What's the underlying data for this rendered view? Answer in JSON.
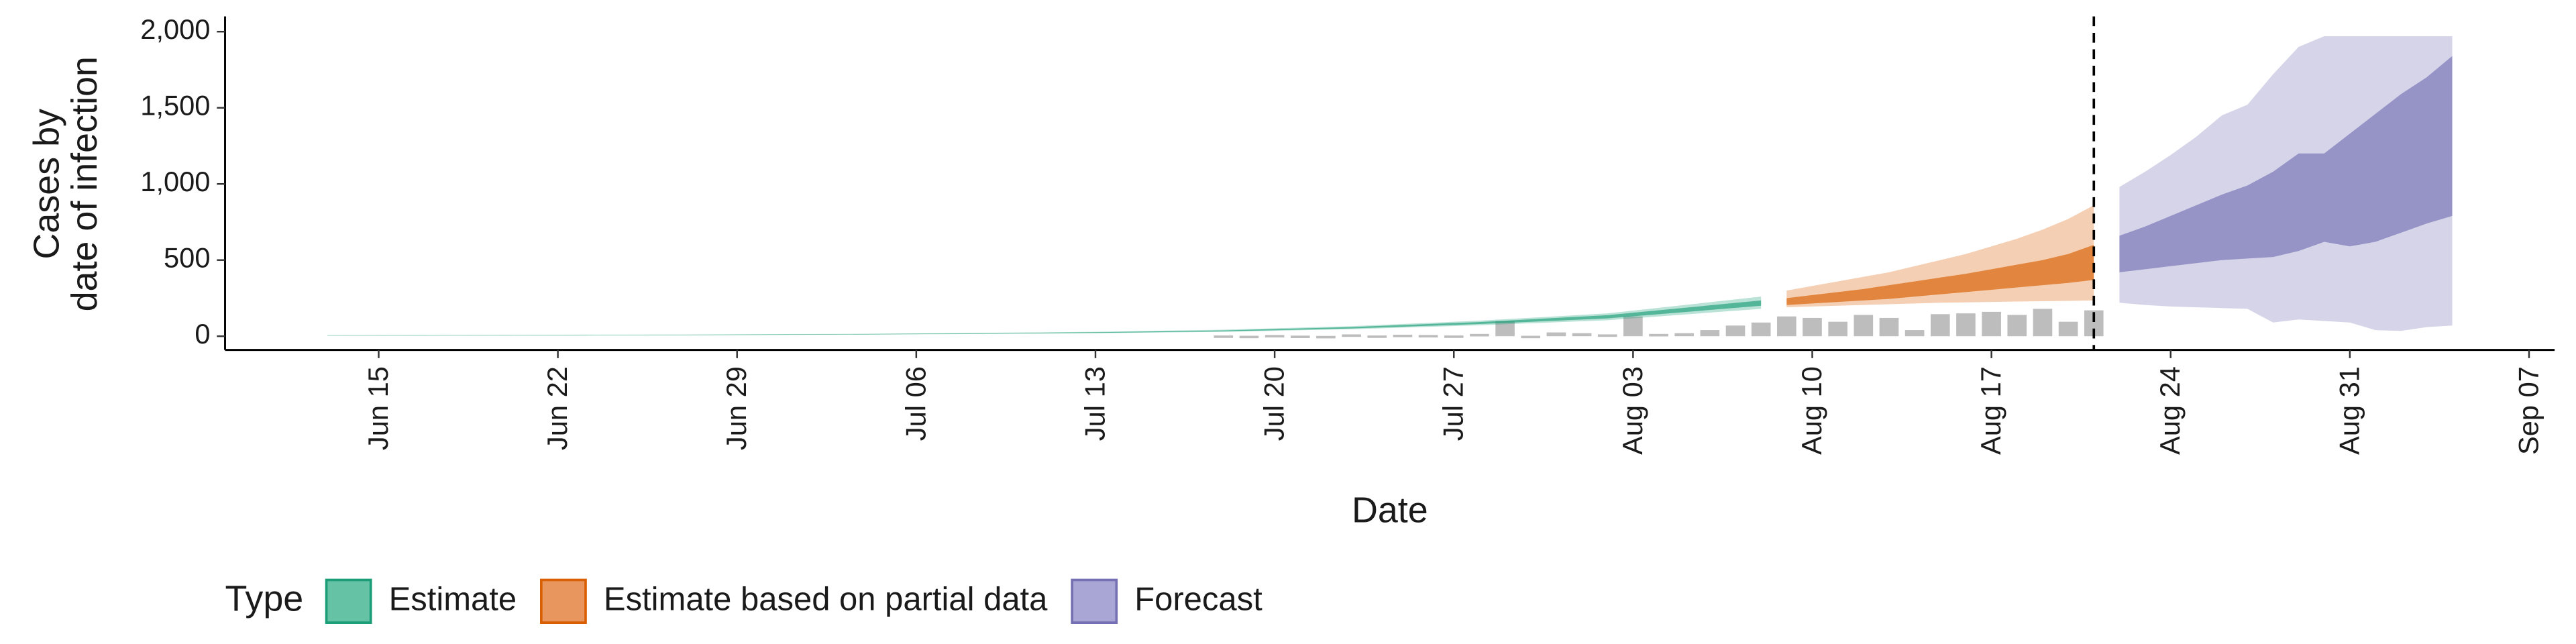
{
  "chart_data": {
    "type": "ribbon",
    "ylabel": [
      "Cases by",
      "date of infection"
    ],
    "xlabel": "Date",
    "legend_title": "Type",
    "legend": "bottom",
    "xlim": [
      "Jun 09",
      "Sep 08"
    ],
    "xticks": [
      "Jun 15",
      "Jun 22",
      "Jun 29",
      "Jul 06",
      "Jul 13",
      "Jul 20",
      "Jul 27",
      "Aug 03",
      "Aug 10",
      "Aug 17",
      "Aug 24",
      "Aug 31",
      "Sep 07"
    ],
    "ylim": [
      -90,
      2100
    ],
    "yticks": [
      0,
      500,
      {
        "value": 1000,
        "label": "1,000"
      },
      {
        "value": 1500,
        "label": "1,500"
      },
      {
        "value": 2000,
        "label": "2,000"
      }
    ],
    "vline": "Aug 21",
    "observed": {
      "color": "#bdbdbd",
      "x": [
        "Jul 18",
        "Jul 19",
        "Jul 20",
        "Jul 21",
        "Jul 22",
        "Jul 23",
        "Jul 24",
        "Jul 25",
        "Jul 26",
        "Jul 27",
        "Jul 28",
        "Jul 29",
        "Jul 30",
        "Jul 31",
        "Aug 01",
        "Aug 02",
        "Aug 03",
        "Aug 04",
        "Aug 05",
        "Aug 06",
        "Aug 07",
        "Aug 08",
        "Aug 09",
        "Aug 10",
        "Aug 11",
        "Aug 12",
        "Aug 13",
        "Aug 14",
        "Aug 15",
        "Aug 16",
        "Aug 17",
        "Aug 18",
        "Aug 19",
        "Aug 20",
        "Aug 21"
      ],
      "values": [
        5,
        3,
        8,
        4,
        2,
        12,
        5,
        10,
        8,
        5,
        15,
        100,
        3,
        25,
        20,
        12,
        130,
        15,
        20,
        40,
        70,
        90,
        130,
        120,
        95,
        140,
        120,
        40,
        145,
        150,
        160,
        140,
        180,
        95,
        170
      ]
    },
    "series": [
      {
        "name": "Estimate",
        "color": "#1b9e77",
        "legend_fill": "#66c2a5",
        "x": [
          "Jun 13",
          "Jun 18",
          "Jun 23",
          "Jun 28",
          "Jul 03",
          "Jul 08",
          "Jul 13",
          "Jul 18",
          "Jul 23",
          "Jul 28",
          "Aug 02",
          "Aug 08"
        ],
        "lower_90": [
          3,
          4,
          5,
          7,
          10,
          14,
          20,
          29,
          46,
          72,
          105,
          180
        ],
        "upper_90": [
          7,
          8,
          10,
          12,
          15,
          21,
          29,
          43,
          66,
          102,
          150,
          260
        ],
        "lower_50": [
          4,
          5,
          6,
          8,
          11,
          16,
          22,
          32,
          51,
          80,
          117,
          200
        ],
        "upper_50": [
          6,
          7,
          8,
          10,
          13,
          19,
          26,
          38,
          60,
          93,
          138,
          235
        ]
      },
      {
        "name": "Estimate based on partial data",
        "color": "#d95f02",
        "legend_fill": "#e8965e",
        "x": [
          "Aug 09",
          "Aug 10",
          "Aug 11",
          "Aug 12",
          "Aug 13",
          "Aug 14",
          "Aug 15",
          "Aug 16",
          "Aug 17",
          "Aug 18",
          "Aug 19",
          "Aug 20",
          "Aug 21"
        ],
        "lower_90": [
          190,
          195,
          200,
          205,
          210,
          215,
          220,
          222,
          225,
          228,
          230,
          232,
          235
        ],
        "upper_90": [
          300,
          330,
          360,
          390,
          420,
          460,
          500,
          540,
          590,
          640,
          700,
          770,
          860
        ],
        "lower_50": [
          205,
          215,
          225,
          235,
          245,
          260,
          275,
          290,
          305,
          320,
          335,
          350,
          370
        ],
        "upper_50": [
          250,
          270,
          290,
          310,
          335,
          360,
          385,
          410,
          440,
          470,
          500,
          540,
          600
        ]
      },
      {
        "name": "Forecast",
        "color": "#7570b3",
        "legend_fill": "#a9a6d6",
        "x": [
          "Aug 22",
          "Aug 23",
          "Aug 24",
          "Aug 25",
          "Aug 26",
          "Aug 27",
          "Aug 28",
          "Aug 29",
          "Aug 30",
          "Aug 31",
          "Sep 01",
          "Sep 02",
          "Sep 03",
          "Sep 04"
        ],
        "lower_90": [
          220,
          205,
          195,
          190,
          185,
          180,
          90,
          110,
          100,
          90,
          40,
          35,
          60,
          70
        ],
        "upper_90": [
          980,
          1080,
          1190,
          1310,
          1450,
          1520,
          1720,
          1900,
          1970,
          1970,
          1970,
          1970,
          1970,
          1970
        ],
        "lower_50": [
          420,
          440,
          460,
          480,
          500,
          510,
          520,
          560,
          620,
          590,
          620,
          680,
          740,
          790
        ],
        "upper_50": [
          660,
          720,
          790,
          860,
          930,
          990,
          1080,
          1200,
          1200,
          1330,
          1460,
          1590,
          1700,
          1840
        ]
      }
    ]
  }
}
